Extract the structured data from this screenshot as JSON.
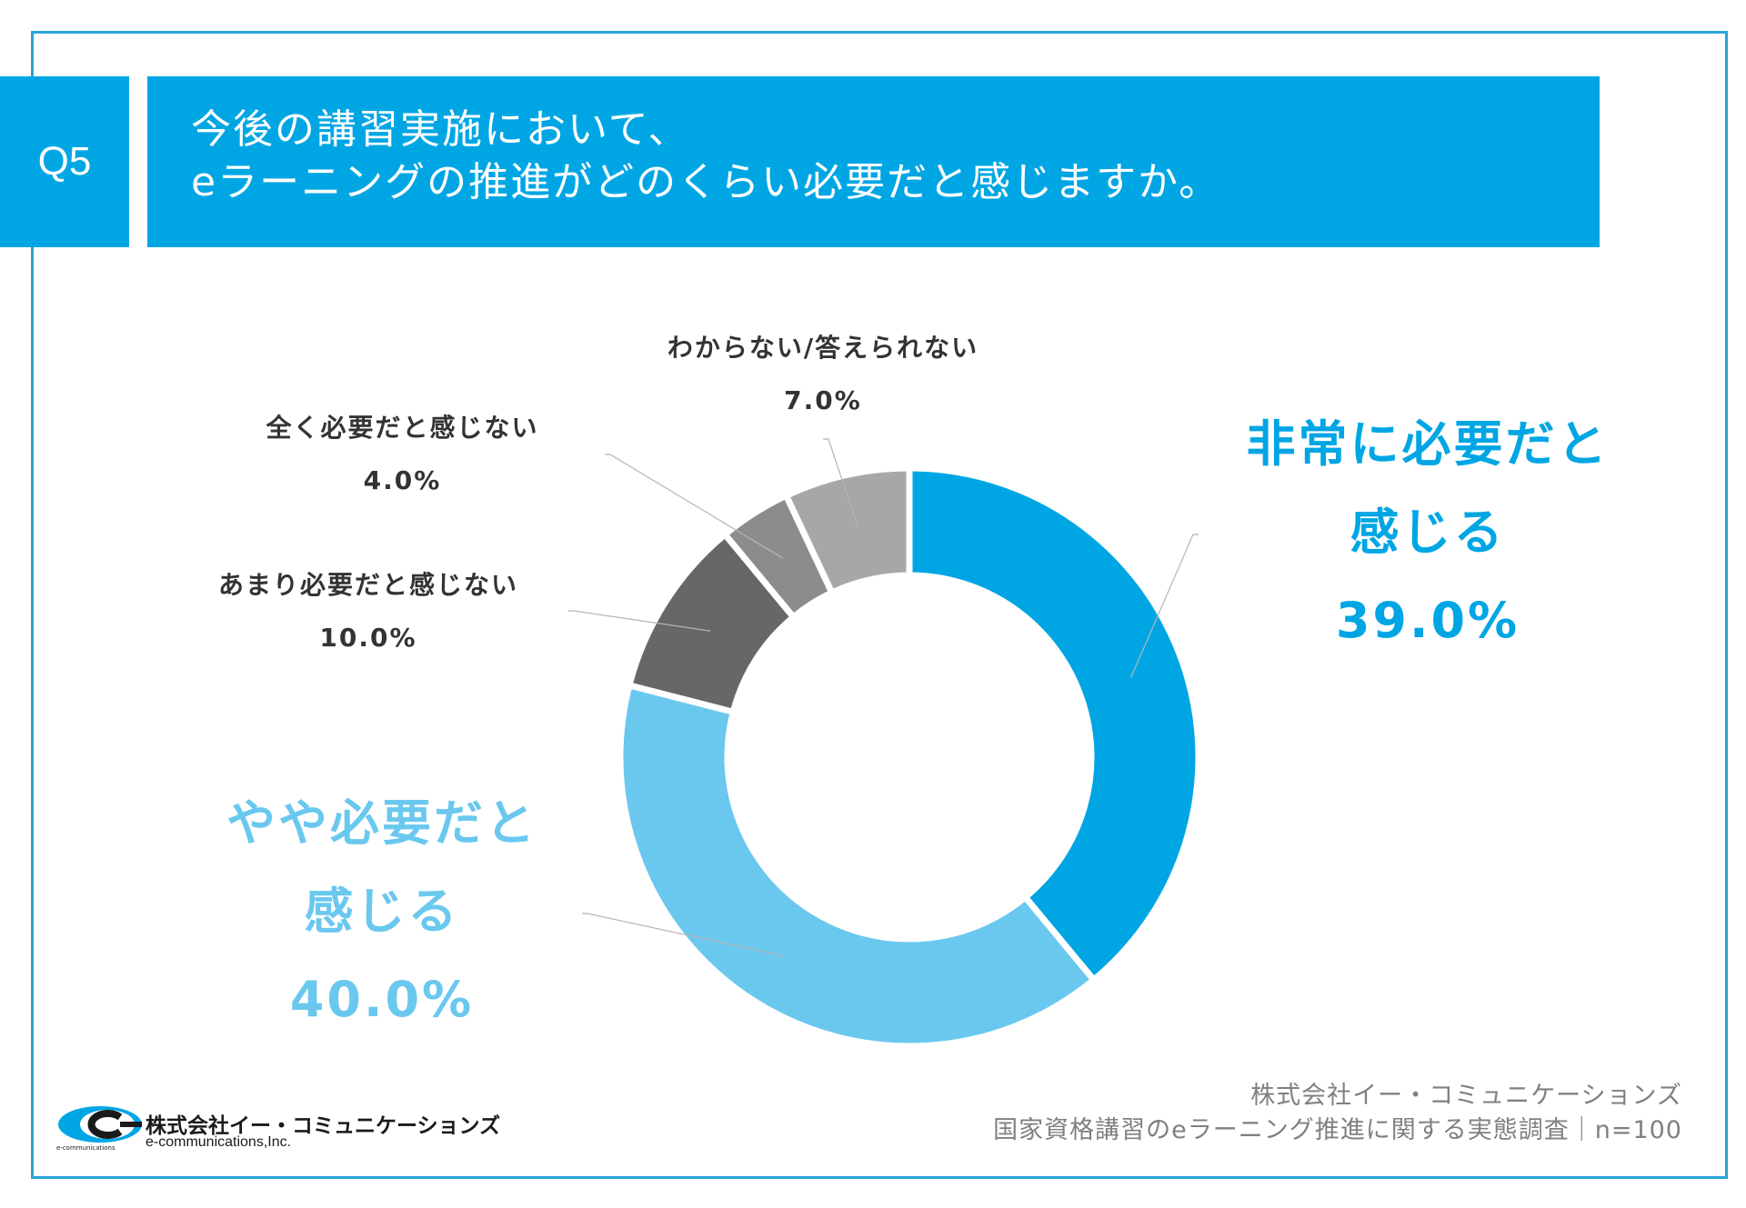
{
  "question": {
    "number": "Q5",
    "line1": "今後の講習実施において、",
    "line2": "eラーニングの推進がどのくらい必要だと感じますか。"
  },
  "chart_data": {
    "type": "pie",
    "variant": "donut",
    "categories": [
      "非常に必要だと感じる",
      "やや必要だと感じる",
      "あまり必要だと感じない",
      "全く必要だと感じない",
      "わからない/答えられない"
    ],
    "values": [
      39.0,
      40.0,
      10.0,
      4.0,
      7.0
    ],
    "colors": [
      "#00a6e4",
      "#6ac8ef",
      "#676767",
      "#8c8c8c",
      "#a7a7a7"
    ],
    "labels": [
      {
        "name_lines": [
          "非常に必要だと",
          "感じる"
        ],
        "value_text": "39.0%"
      },
      {
        "name_lines": [
          "やや必要だと",
          "感じる"
        ],
        "value_text": "40.0%"
      },
      {
        "name_lines": [
          "あまり必要だと感じない"
        ],
        "value_text": "10.0%"
      },
      {
        "name_lines": [
          "全く必要だと感じない"
        ],
        "value_text": "4.0%"
      },
      {
        "name_lines": [
          "わからない/答えられない"
        ],
        "value_text": "7.0%"
      }
    ]
  },
  "source": {
    "line1": "株式会社イー・コミュニケーションズ",
    "line2": "国家資格講習のeラーニング推進に関する実態調査｜n=100"
  },
  "logo": {
    "name": "株式会社イー・コミュニケーションズ",
    "english": "e-communications,Inc.",
    "small": "e-communications"
  }
}
